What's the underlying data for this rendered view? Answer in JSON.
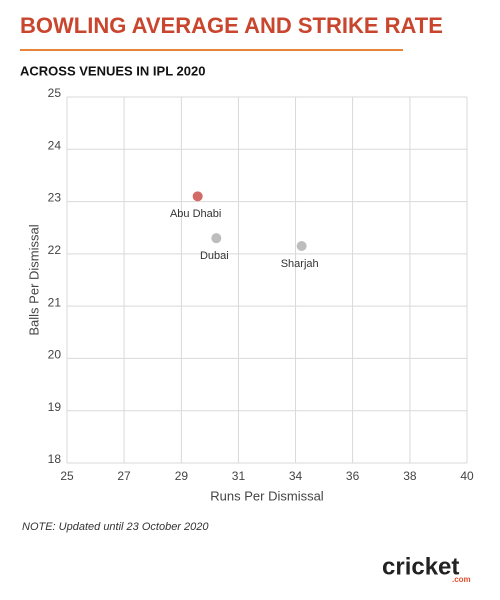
{
  "chart_data": {
    "type": "scatter",
    "title": "BOWLING AVERAGE AND STRIKE RATE",
    "subtitle": "ACROSS VENUES IN IPL 2020",
    "x_label": "Runs Per Dismissal",
    "y_label": "Balls Per Dismissal",
    "note": "NOTE: Updated until 23 October 2020",
    "logo": {
      "main": "cricket",
      "sub": ".com"
    },
    "point_labels": [
      "Abu Dhabi",
      "Dubai",
      "Sharjah"
    ],
    "x": [
      29.9,
      30.6,
      33.8
    ],
    "values": [
      23.1,
      22.3,
      22.15
    ],
    "colors": [
      "#d26a66",
      "#bdbdbd",
      "#bdbdbd"
    ],
    "xlim": [
      25,
      40
    ],
    "xticks": [
      25,
      {
        "value": 27.14,
        "label": "27"
      },
      {
        "value": 29.29,
        "label": "29"
      },
      {
        "value": 31.43,
        "label": "31"
      },
      {
        "value": 33.57,
        "label": "34"
      },
      {
        "value": 35.71,
        "label": "36"
      },
      {
        "value": 37.86,
        "label": "38"
      },
      40
    ],
    "ylim": [
      18,
      25
    ],
    "yticks": [
      18,
      19,
      20,
      21,
      22,
      23,
      24,
      25
    ],
    "grid": true
  }
}
